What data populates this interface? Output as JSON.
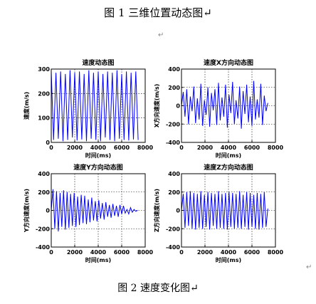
{
  "captions": {
    "fig1": "图 1  三维位置动态图↵",
    "fig2": "图 2  速度变化图↵",
    "para_mark": "↵"
  },
  "colors": {
    "series": "#0000ff",
    "frame": "#000000",
    "grid": "#000000"
  },
  "chart_data": [
    {
      "type": "line",
      "title": "速度动态图",
      "xlabel": "时间(ms)",
      "ylabel": "速度(m/s)",
      "xlim": [
        0,
        8000
      ],
      "ylim": [
        0,
        300
      ],
      "xticks": [
        0,
        2000,
        4000,
        6000,
        8000
      ],
      "yticks": [
        0,
        100,
        200,
        300
      ],
      "grid": true,
      "series": [
        {
          "x": [
            0,
            200,
            400,
            600,
            800,
            1000,
            1200,
            1400,
            1600,
            1800,
            2000,
            2200,
            2400,
            2600,
            2800,
            3000,
            3200,
            3400,
            3600,
            3800,
            4000,
            4200,
            4400,
            4600,
            4800,
            5000,
            5200,
            5400,
            5600,
            5800,
            6000,
            6200,
            6400,
            6600,
            6800,
            7000,
            7200,
            7400
          ],
          "y": [
            290,
            10,
            285,
            15,
            290,
            5,
            280,
            10,
            295,
            20,
            285,
            8,
            290,
            12,
            280,
            5,
            295,
            15,
            285,
            10,
            290,
            5,
            280,
            20,
            290,
            10,
            285,
            5,
            295,
            15,
            280,
            10,
            290,
            8,
            285,
            12,
            290,
            10
          ]
        }
      ]
    },
    {
      "type": "line",
      "title": "速度X方向动态图",
      "xlabel": "时间(ms)",
      "ylabel": "X方向速度(m/s)",
      "xlim": [
        0,
        8000
      ],
      "ylim": [
        -400,
        400
      ],
      "xticks": [
        0,
        2000,
        4000,
        6000,
        8000
      ],
      "yticks": [
        -400,
        -200,
        0,
        200,
        400
      ],
      "grid": true,
      "series": [
        {
          "x": [
            0,
            150,
            300,
            450,
            600,
            750,
            900,
            1050,
            1200,
            1350,
            1500,
            1650,
            1800,
            1950,
            2100,
            2250,
            2400,
            2550,
            2700,
            2850,
            3000,
            3150,
            3300,
            3450,
            3600,
            3750,
            3900,
            4050,
            4200,
            4350,
            4500,
            4650,
            4800,
            4950,
            5100,
            5250,
            5400,
            5550,
            5700,
            5850,
            6000,
            6150,
            6300,
            6450,
            6600,
            6750,
            6900,
            7050,
            7200,
            7350
          ],
          "y": [
            0,
            150,
            -120,
            180,
            -200,
            100,
            -60,
            210,
            -190,
            80,
            -150,
            240,
            -220,
            60,
            -100,
            200,
            -230,
            140,
            -50,
            180,
            -210,
            250,
            -160,
            90,
            -120,
            230,
            -240,
            120,
            -80,
            260,
            -200,
            60,
            -140,
            210,
            -250,
            160,
            -90,
            230,
            -180,
            100,
            -220,
            270,
            -150,
            70,
            -130,
            240,
            -210,
            110,
            -60,
            30
          ]
        }
      ]
    },
    {
      "type": "line",
      "title": "速度Y方向动态图",
      "xlabel": "时间(ms)",
      "ylabel": "Y方向速度(m/s)",
      "xlim": [
        0,
        8000
      ],
      "ylim": [
        -400,
        400
      ],
      "xticks": [
        0,
        2000,
        4000,
        6000,
        8000
      ],
      "yticks": [
        -400,
        -200,
        0,
        200,
        400
      ],
      "grid": true,
      "series": [
        {
          "x": [
            0,
            150,
            300,
            450,
            600,
            750,
            900,
            1050,
            1200,
            1350,
            1500,
            1650,
            1800,
            1950,
            2100,
            2250,
            2400,
            2550,
            2700,
            2850,
            3000,
            3150,
            3300,
            3450,
            3600,
            3750,
            3900,
            4050,
            4200,
            4350,
            4500,
            4650,
            4800,
            4950,
            5100,
            5250,
            5400,
            5550,
            5700,
            5850,
            6000,
            6150,
            6300,
            6450,
            6600,
            6750,
            6900,
            7050,
            7200,
            7350
          ],
          "y": [
            0,
            230,
            -200,
            210,
            -230,
            190,
            -180,
            220,
            -210,
            200,
            -190,
            180,
            -170,
            190,
            -180,
            150,
            -160,
            170,
            -140,
            160,
            -150,
            120,
            -130,
            140,
            -110,
            100,
            -120,
            110,
            -90,
            80,
            -100,
            90,
            -70,
            60,
            -80,
            70,
            -60,
            50,
            -70,
            60,
            -40,
            50,
            -30,
            10,
            -40,
            30,
            -20,
            10,
            -10,
            0
          ]
        }
      ]
    },
    {
      "type": "line",
      "title": "速度Z方向动态图",
      "xlabel": "时间(ms)",
      "ylabel": "Z方向速度(m/s)",
      "xlim": [
        0,
        8000
      ],
      "ylim": [
        -400,
        400
      ],
      "xticks": [
        0,
        2000,
        4000,
        6000,
        8000
      ],
      "yticks": [
        -400,
        -200,
        0,
        200,
        400
      ],
      "grid": true,
      "series": [
        {
          "x": [
            0,
            150,
            300,
            450,
            600,
            750,
            900,
            1050,
            1200,
            1350,
            1500,
            1650,
            1800,
            1950,
            2100,
            2250,
            2400,
            2550,
            2700,
            2850,
            3000,
            3150,
            3300,
            3450,
            3600,
            3750,
            3900,
            4050,
            4200,
            4350,
            4500,
            4650,
            4800,
            4950,
            5100,
            5250,
            5400,
            5550,
            5700,
            5850,
            6000,
            6150,
            6300,
            6450,
            6600,
            6750,
            6900,
            7050,
            7200,
            7350
          ],
          "y": [
            0,
            180,
            -190,
            200,
            -170,
            210,
            -200,
            190,
            -210,
            180,
            -190,
            210,
            -200,
            170,
            -180,
            200,
            -210,
            190,
            -170,
            180,
            -200,
            210,
            -190,
            180,
            -200,
            190,
            -210,
            200,
            -180,
            190,
            -200,
            180,
            -190,
            210,
            -200,
            170,
            -180,
            200,
            -210,
            190,
            -180,
            170,
            -200,
            190,
            -210,
            180,
            -190,
            200,
            -180,
            20
          ]
        }
      ]
    }
  ]
}
